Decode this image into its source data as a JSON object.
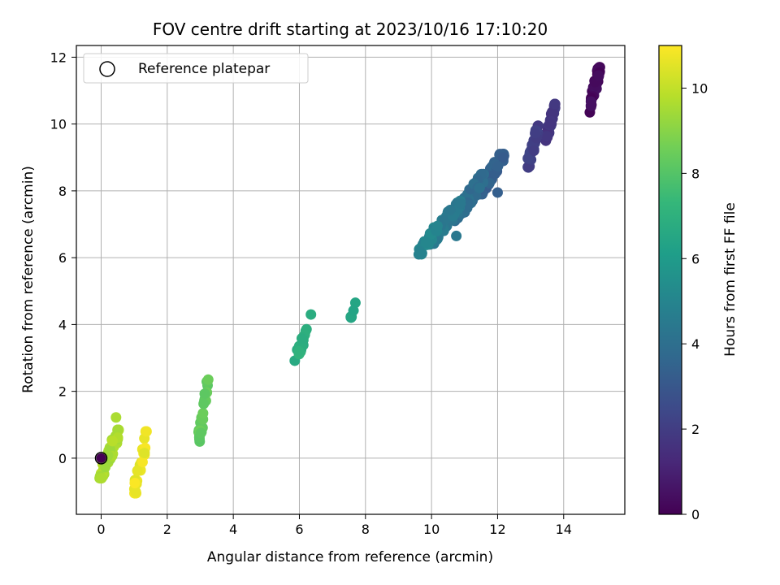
{
  "chart_data": {
    "type": "scatter",
    "title": "FOV centre drift starting at 2023/10/16 17:10:20",
    "xlabel": "Angular distance from reference (arcmin)",
    "ylabel": "Rotation from reference (arcmin)",
    "xlim": [
      -0.75,
      15.85
    ],
    "ylim": [
      -1.68,
      12.35
    ],
    "xticks": [
      0,
      2,
      4,
      6,
      8,
      10,
      12,
      14
    ],
    "yticks": [
      0,
      2,
      4,
      6,
      8,
      10,
      12
    ],
    "grid": true,
    "legend": {
      "position": "top-left",
      "entries": [
        "Reference platepar"
      ]
    },
    "reference_point": {
      "x": 0,
      "y": 0
    },
    "colorbar": {
      "label": "Hours from first FF file",
      "range": [
        0,
        11
      ],
      "ticks": [
        0,
        2,
        4,
        6,
        8,
        10
      ],
      "colormap": [
        "#440154",
        "#482878",
        "#3e4989",
        "#31688e",
        "#26828e",
        "#1f9e89",
        "#35b779",
        "#6ece58",
        "#b5de2b",
        "#fde725"
      ]
    },
    "clusters": [
      {
        "hours": 0.3,
        "count": 40,
        "x": [
          14.75,
          15.1
        ],
        "y": [
          10.35,
          11.7
        ]
      },
      {
        "hours": 1.8,
        "count": 40,
        "x": [
          13.45,
          13.75
        ],
        "y": [
          9.5,
          10.6
        ]
      },
      {
        "hours": 2.1,
        "count": 30,
        "x": [
          12.9,
          13.25
        ],
        "y": [
          8.7,
          9.95
        ]
      },
      {
        "hours": 3.3,
        "count": 60,
        "x": [
          11.4,
          12.2
        ],
        "y": [
          7.9,
          9.1
        ]
      },
      {
        "hours": 3.9,
        "count": 60,
        "x": [
          10.7,
          11.6
        ],
        "y": [
          7.1,
          8.5
        ]
      },
      {
        "hours": 4.5,
        "count": 60,
        "x": [
          9.9,
          10.9
        ],
        "y": [
          6.4,
          7.7
        ]
      },
      {
        "hours": 5.0,
        "count": 30,
        "x": [
          9.6,
          10.2
        ],
        "y": [
          6.1,
          6.95
        ]
      },
      {
        "hours": 6.4,
        "count": 6,
        "x": [
          7.55,
          7.7
        ],
        "y": [
          4.15,
          4.65
        ]
      },
      {
        "hours": 6.9,
        "count": 22,
        "x": [
          5.85,
          6.25
        ],
        "y": [
          2.85,
          3.9
        ]
      },
      {
        "hours": 8.3,
        "count": 25,
        "x": [
          2.95,
          3.25
        ],
        "y": [
          0.5,
          2.35
        ]
      },
      {
        "hours": 9.6,
        "count": 40,
        "x": [
          -0.05,
          0.55
        ],
        "y": [
          -0.6,
          0.85
        ]
      },
      {
        "hours": 10.7,
        "count": 28,
        "x": [
          1.0,
          1.4
        ],
        "y": [
          -1.05,
          0.8
        ]
      }
    ],
    "outliers": [
      {
        "x": 6.35,
        "y": 4.3,
        "hours": 6.8
      },
      {
        "x": 0.45,
        "y": 1.22,
        "hours": 9.6
      },
      {
        "x": 10.75,
        "y": 6.65,
        "hours": 4.4
      },
      {
        "x": 13.1,
        "y": 9.2,
        "hours": 2.0
      },
      {
        "x": 12.0,
        "y": 7.95,
        "hours": 3.3
      }
    ]
  }
}
